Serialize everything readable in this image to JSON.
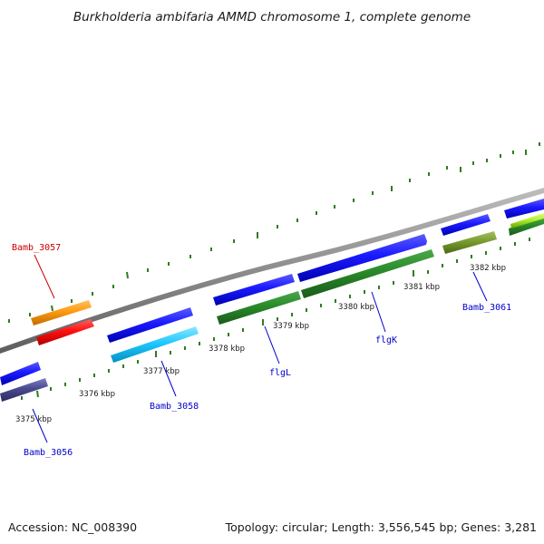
{
  "title": "Burkholderia ambifaria AMMD chromosome 1, complete genome",
  "footer": {
    "accession": "Accession: NC_008390",
    "summary": "Topology: circular; Length: 3,556,545 bp; Genes: 3,281"
  },
  "colors": {
    "backbone": "#8c8c8c",
    "ticks": "#2e7d1e",
    "label_red": "#cc0000",
    "label_blue": "#0000cc"
  },
  "tick_labels": [
    "3375 kbp",
    "3376 kbp",
    "3377 kbp",
    "3378 kbp",
    "3379 kbp",
    "3380 kbp",
    "3381 kbp",
    "3382 kbp"
  ],
  "gene_labels": [
    {
      "text": "Bamb_3057",
      "color": "red"
    },
    {
      "text": "Bamb_3056",
      "color": "blue"
    },
    {
      "text": "Bamb_3058",
      "color": "blue"
    },
    {
      "text": "flgL",
      "color": "blue"
    },
    {
      "text": "flgK",
      "color": "blue"
    },
    {
      "text": "Bamb_3061",
      "color": "blue"
    }
  ]
}
